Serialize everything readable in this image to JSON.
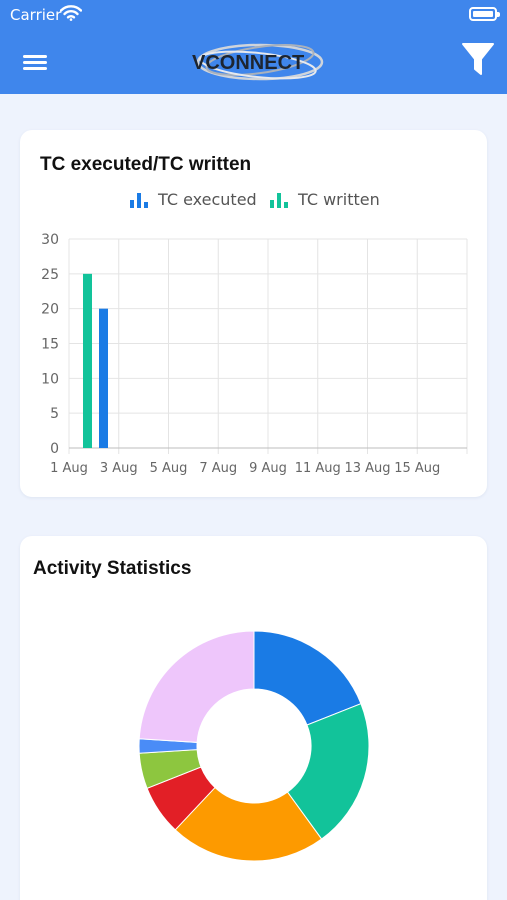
{
  "status_bar": {
    "carrier": "Carrier"
  },
  "nav": {
    "logo_text": "VCONNECT"
  },
  "chart1": {
    "title": "TC executed/TC written",
    "legend": [
      {
        "label": "TC executed",
        "color": "#1a7be5",
        "icon": "bar-chart-icon"
      },
      {
        "label": "TC written",
        "color": "#12c39a",
        "icon": "bar-chart-icon"
      }
    ]
  },
  "chart2": {
    "title": "Activity Statistics"
  },
  "chart_data": [
    {
      "type": "bar",
      "title": "TC executed/TC written",
      "categories": [
        "1 Aug",
        "3 Aug",
        "5 Aug",
        "7 Aug",
        "9 Aug",
        "11 Aug",
        "13 Aug",
        "15 Aug"
      ],
      "series": [
        {
          "name": "TC executed",
          "color": "#1a7be5",
          "values": [
            20,
            0,
            0,
            0,
            0,
            0,
            0,
            0
          ]
        },
        {
          "name": "TC written",
          "color": "#12c39a",
          "values": [
            25,
            0,
            0,
            0,
            0,
            0,
            0,
            0
          ]
        }
      ],
      "y_ticks": [
        0,
        5,
        10,
        15,
        20,
        25,
        30
      ],
      "ylim": [
        0,
        30
      ],
      "grid": true,
      "legend_position": "top-center"
    },
    {
      "type": "pie",
      "title": "Activity Statistics",
      "donut": true,
      "values": [
        19,
        21,
        22,
        7,
        5,
        2,
        24
      ],
      "colors": [
        "#1a7be5",
        "#12c39a",
        "#fd9a00",
        "#e21f26",
        "#8dc63f",
        "#4a8cf7",
        "#eec6fb"
      ]
    }
  ]
}
